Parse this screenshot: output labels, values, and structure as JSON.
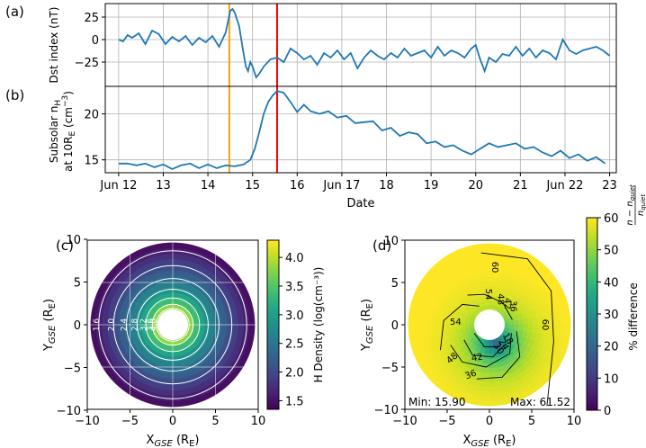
{
  "chart_data": [
    {
      "panel": "(a)",
      "type": "line",
      "ylabel": "Dst index (nT)",
      "ylim": [
        -52,
        40
      ],
      "yticks": [
        25,
        0,
        -25
      ],
      "ytick_labels": [
        "25",
        "0",
        "−25"
      ],
      "xlim": [
        11.7,
        23.15
      ],
      "series": [
        {
          "name": "Dst",
          "color": "#1f77b4",
          "x": [
            12.0,
            12.1,
            12.2,
            12.3,
            12.45,
            12.6,
            12.75,
            12.9,
            13.05,
            13.2,
            13.35,
            13.5,
            13.65,
            13.8,
            13.95,
            14.1,
            14.25,
            14.4,
            14.5,
            14.55,
            14.6,
            14.7,
            14.78,
            14.85,
            14.9,
            14.95,
            15.0,
            15.08,
            15.15,
            15.25,
            15.4,
            15.55,
            15.7,
            15.85,
            16.0,
            16.15,
            16.3,
            16.45,
            16.6,
            16.75,
            16.9,
            17.05,
            17.2,
            17.35,
            17.5,
            17.65,
            17.8,
            17.95,
            18.1,
            18.25,
            18.4,
            18.55,
            18.7,
            18.85,
            19.0,
            19.15,
            19.3,
            19.45,
            19.6,
            19.75,
            19.9,
            20.0,
            20.1,
            20.2,
            20.3,
            20.45,
            20.6,
            20.75,
            20.9,
            21.05,
            21.2,
            21.35,
            21.5,
            21.65,
            21.8,
            21.95,
            22.1,
            22.25,
            22.4,
            22.55,
            22.7,
            22.85,
            23.0
          ],
          "y": [
            0,
            -2,
            5,
            2,
            7,
            -5,
            10,
            6,
            -5,
            3,
            -2,
            4,
            -6,
            2,
            -3,
            4,
            -8,
            8,
            32,
            34,
            30,
            15,
            -10,
            -30,
            -35,
            -25,
            -30,
            -42,
            -38,
            -30,
            -22,
            -20,
            -25,
            -10,
            -15,
            -22,
            -18,
            -28,
            -15,
            -20,
            -12,
            -22,
            -15,
            -32,
            -20,
            -12,
            -18,
            -22,
            -15,
            -20,
            -10,
            -18,
            -15,
            -12,
            -20,
            -8,
            -18,
            -12,
            -15,
            -20,
            -10,
            -6,
            -22,
            -35,
            -20,
            -25,
            -16,
            -18,
            -8,
            -18,
            -10,
            -20,
            -12,
            -15,
            -22,
            0,
            -12,
            -16,
            -12,
            -10,
            -8,
            -12,
            -18
          ]
        }
      ],
      "vlines": [
        {
          "x": 14.48,
          "color": "#f5a30f"
        },
        {
          "x": 15.55,
          "color": "#ff0000"
        }
      ]
    },
    {
      "panel": "(b)",
      "type": "line",
      "ylabel_line1": "Subsolar n",
      "ylabel_sub": "H",
      "ylabel_line2": "at 10R",
      "ylabel_sub2": "E",
      "ylabel_units": " (cm",
      "ylabel_exp": "−3",
      "ylabel_close": ")",
      "ylim": [
        13.6,
        23.0
      ],
      "yticks": [
        20,
        15
      ],
      "ytick_labels": [
        "20",
        "15"
      ],
      "xlim": [
        11.7,
        23.15
      ],
      "xlabel": "Date",
      "xticks": [
        12,
        13,
        14,
        15,
        16,
        17,
        18,
        19,
        20,
        21,
        22,
        23
      ],
      "xtick_labels": [
        "Jun 12",
        "13",
        "14",
        "15",
        "16",
        "Jun 17",
        "18",
        "19",
        "20",
        "21",
        "Jun 22",
        "23"
      ],
      "series": [
        {
          "name": "n_H",
          "color": "#1f77b4",
          "x": [
            12.0,
            12.2,
            12.4,
            12.6,
            12.8,
            13.0,
            13.2,
            13.4,
            13.6,
            13.8,
            14.0,
            14.2,
            14.4,
            14.6,
            14.8,
            14.95,
            15.05,
            15.15,
            15.25,
            15.35,
            15.45,
            15.55,
            15.7,
            15.85,
            16.0,
            16.15,
            16.3,
            16.5,
            16.7,
            16.9,
            17.1,
            17.3,
            17.5,
            17.7,
            17.9,
            18.1,
            18.3,
            18.5,
            18.7,
            18.9,
            19.1,
            19.3,
            19.5,
            19.7,
            19.9,
            20.1,
            20.3,
            20.5,
            20.7,
            20.9,
            21.1,
            21.3,
            21.5,
            21.7,
            21.9,
            22.1,
            22.3,
            22.5,
            22.7,
            22.9
          ],
          "y": [
            14.6,
            14.6,
            14.4,
            14.6,
            14.2,
            14.5,
            14.0,
            14.4,
            14.6,
            14.1,
            14.5,
            14.1,
            14.4,
            14.3,
            14.5,
            15.0,
            16.2,
            18.0,
            20.0,
            21.3,
            22.0,
            22.5,
            22.3,
            21.3,
            20.2,
            21.0,
            20.3,
            20.0,
            20.3,
            19.6,
            19.8,
            19.0,
            19.1,
            19.2,
            18.2,
            18.5,
            17.6,
            18.0,
            17.8,
            16.8,
            17.0,
            16.4,
            16.6,
            16.0,
            15.6,
            16.2,
            16.8,
            16.4,
            16.6,
            16.8,
            16.2,
            16.4,
            15.8,
            15.4,
            16.0,
            15.2,
            15.6,
            14.9,
            15.3,
            14.6
          ]
        }
      ],
      "vlines": [
        {
          "x": 14.48,
          "color": "#f5a30f"
        },
        {
          "x": 15.55,
          "color": "#ff0000"
        }
      ]
    },
    {
      "panel": "(c)",
      "type": "heatmap",
      "xlabel_main": "X",
      "xlabel_sub": "GSE",
      "xlabel_tail": " (R",
      "xlabel_sub2": "E",
      "xlabel_close": ")",
      "ylabel_main": "Y",
      "ylabel_sub": "GSE",
      "ylabel_tail": " (R",
      "ylabel_sub2": "E",
      "ylabel_close": ")",
      "xlim": [
        -10,
        10
      ],
      "ylim": [
        -10,
        10
      ],
      "xticks": [
        -10,
        -5,
        0,
        5,
        10
      ],
      "xtick_labels": [
        "−10",
        "−5",
        "0",
        "5",
        "10"
      ],
      "yticks": [
        10,
        5,
        0,
        -5,
        -10
      ],
      "ytick_labels": [
        "10",
        "5",
        "0",
        "−5",
        "−10"
      ],
      "inner_radius": 1.8,
      "outer_radius": 9.6,
      "contour_levels": [
        1.6,
        2.0,
        2.4,
        2.8,
        3.2,
        3.6,
        4.0
      ],
      "contour_labels": [
        "1.6",
        "2.0",
        "2.4",
        "2.8",
        "3.2",
        "3.6",
        "4.0"
      ],
      "colorbar_label": "H Density (log(cm⁻³))",
      "colorbar_ticks": [
        4.0,
        3.5,
        3.0,
        2.5,
        2.0,
        1.5
      ],
      "colorbar_tick_labels": [
        "4.0",
        "3.5",
        "3.0",
        "2.5",
        "2.0",
        "1.5"
      ],
      "colorbar_range": [
        1.35,
        4.3
      ]
    },
    {
      "panel": "(d)",
      "type": "heatmap",
      "xlabel_main": "X",
      "xlabel_sub": "GSE",
      "xlabel_tail": " (R",
      "xlabel_sub2": "E",
      "xlabel_close": ")",
      "ylabel_main": "Y",
      "ylabel_sub": "GSE",
      "ylabel_tail": " (R",
      "ylabel_sub2": "E",
      "ylabel_close": ")",
      "xlim": [
        -10,
        10
      ],
      "ylim": [
        -10,
        10
      ],
      "xticks": [
        -10,
        -5,
        0,
        5,
        10
      ],
      "xtick_labels": [
        "−10",
        "−5",
        "0",
        "5",
        "10"
      ],
      "yticks": [
        10,
        5,
        0,
        -5,
        -10
      ],
      "ytick_labels": [
        "10",
        "5",
        "0",
        "−5",
        "−10"
      ],
      "inner_radius": 1.8,
      "outer_radius": 9.6,
      "contour_labels": [
        "60",
        "54",
        "48",
        "42",
        "36",
        "30",
        "24",
        "18",
        "54",
        "48",
        "42",
        "36",
        "60"
      ],
      "min_text": "Min: 15.90",
      "max_text": "Max: 61.52",
      "colorbar_label": "% difference",
      "colorbar_frac_num": "n − n",
      "colorbar_frac_num_sub": "quiet",
      "colorbar_frac_den": "n",
      "colorbar_frac_den_sub": "quiet",
      "colorbar_ticks": [
        60,
        50,
        40,
        30,
        20,
        10,
        0
      ],
      "colorbar_tick_labels": [
        "60",
        "50",
        "40",
        "30",
        "20",
        "10",
        "0"
      ],
      "colorbar_range": [
        0,
        60
      ]
    }
  ],
  "colors": {
    "line": "#1f77b4",
    "orange": "#f5a30f",
    "red": "#ff0000",
    "grid": "#b0b0b0"
  }
}
